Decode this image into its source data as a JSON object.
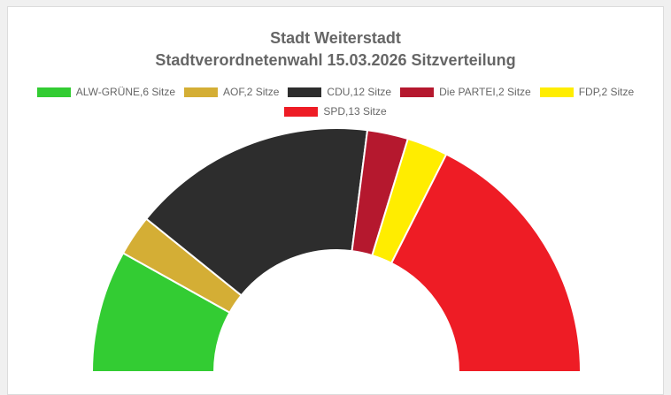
{
  "chart_data": {
    "type": "pie",
    "subtype": "semicircle",
    "title": "Stadt Weiterstadt",
    "subtitle": "Stadtverordnetenwahl 15.03.2026 Sitzverteilung",
    "legend_position": "top",
    "series": [
      {
        "name": "ALW-GRÜNE",
        "value": 6,
        "legend_label": "ALW-GRÜNE,6 Sitze",
        "color": "#33cc33"
      },
      {
        "name": "AOF",
        "value": 2,
        "legend_label": "AOF,2 Sitze",
        "color": "#d4ae35"
      },
      {
        "name": "CDU",
        "value": 12,
        "legend_label": "CDU,12 Sitze",
        "color": "#2d2d2d"
      },
      {
        "name": "Die PARTEI",
        "value": 2,
        "legend_label": "Die PARTEI,2 Sitze",
        "color": "#b5182e"
      },
      {
        "name": "FDP",
        "value": 2,
        "legend_label": "FDP,2 Sitze",
        "color": "#ffed00"
      },
      {
        "name": "SPD",
        "value": 13,
        "legend_label": "SPD,13 Sitze",
        "color": "#ee1c25"
      }
    ]
  }
}
